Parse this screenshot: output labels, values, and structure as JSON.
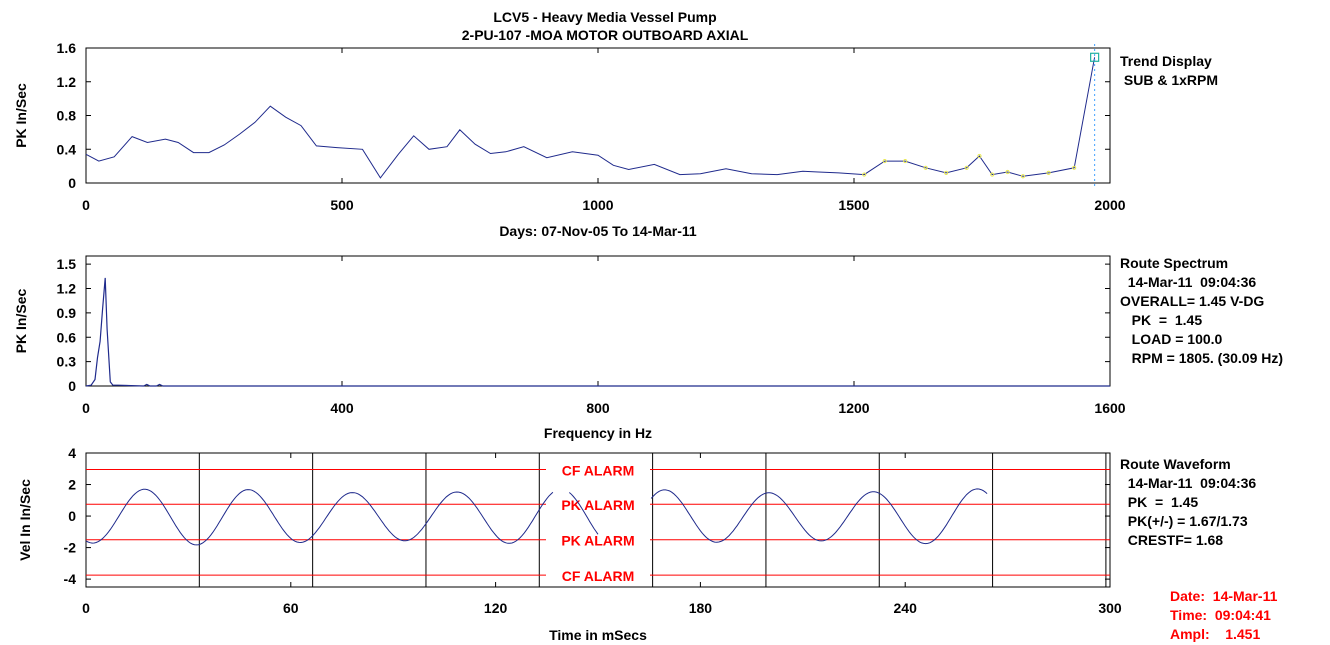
{
  "header": {
    "title": "LCV5 - Heavy Media Vessel Pump",
    "subtitle": "2-PU-107  -MOA  MOTOR OUTBOARD AXIAL"
  },
  "trend_info": {
    "line1": "Trend Display",
    "line2": " SUB & 1xRPM"
  },
  "spectrum_info": {
    "line1": "Route Spectrum",
    "line2": "  14-Mar-11  09:04:36",
    "line3": "OVERALL= 1.45 V-DG",
    "line4": "   PK  =  1.45",
    "line5": "   LOAD = 100.0",
    "line6": "   RPM = 1805. (30.09 Hz)"
  },
  "waveform_info": {
    "line1": "Route Waveform",
    "line2": "  14-Mar-11  09:04:36",
    "line3": "  PK  =  1.45",
    "line4": "  PK(+/-) = 1.67/1.73",
    "line5": "  CRESTF= 1.68"
  },
  "cursor_info": {
    "date": "Date:  14-Mar-11",
    "time": "Time:  09:04:41",
    "ampl": "Ampl:    1.451"
  },
  "colors": {
    "trace": "#1f2a8c",
    "alarm": "#ff0000",
    "cursor": "#40a0ff",
    "marker": "#e8e850"
  },
  "chart_data": [
    {
      "type": "line",
      "title": "LCV5 - Heavy Media Vessel Pump",
      "xlabel": "Days:  07-Nov-05  To  14-Mar-11",
      "ylabel": "PK In/Sec",
      "xlim": [
        0,
        2000
      ],
      "ylim": [
        0,
        1.6
      ],
      "xticks": [
        "0",
        "500",
        "1000",
        "1500",
        "2000"
      ],
      "xtick_values": [
        0,
        500,
        1000,
        1500,
        2000
      ],
      "yticks": [
        "0",
        "0.4",
        "0.8",
        "1.2",
        "1.6"
      ],
      "ytick_values": [
        0,
        0.4,
        0.8,
        1.2,
        1.6
      ],
      "x": [
        0,
        25,
        55,
        90,
        120,
        155,
        180,
        210,
        240,
        270,
        300,
        330,
        360,
        390,
        420,
        450,
        490,
        540,
        575,
        610,
        640,
        670,
        705,
        730,
        760,
        790,
        820,
        855,
        900,
        950,
        1000,
        1030,
        1060,
        1110,
        1160,
        1200,
        1250,
        1300,
        1350,
        1400,
        1430,
        1470,
        1520,
        1560,
        1600,
        1640,
        1680,
        1720,
        1745,
        1770,
        1800,
        1830,
        1880,
        1930,
        1970
      ],
      "y": [
        0.34,
        0.26,
        0.31,
        0.55,
        0.48,
        0.52,
        0.48,
        0.36,
        0.36,
        0.45,
        0.58,
        0.72,
        0.91,
        0.78,
        0.68,
        0.44,
        0.42,
        0.4,
        0.06,
        0.34,
        0.56,
        0.4,
        0.43,
        0.63,
        0.46,
        0.35,
        0.37,
        0.43,
        0.3,
        0.37,
        0.33,
        0.21,
        0.16,
        0.22,
        0.1,
        0.11,
        0.17,
        0.11,
        0.1,
        0.14,
        0.13,
        0.12,
        0.1,
        0.26,
        0.26,
        0.18,
        0.12,
        0.18,
        0.32,
        0.1,
        0.13,
        0.08,
        0.12,
        0.18,
        1.49
      ]
    },
    {
      "type": "line",
      "xlabel": "Frequency in Hz",
      "ylabel": "PK In/Sec",
      "xlim": [
        0,
        1600
      ],
      "ylim": [
        0,
        1.6
      ],
      "xticks": [
        "0",
        "400",
        "800",
        "1200",
        "1600"
      ],
      "xtick_values": [
        0,
        400,
        800,
        1200,
        1600
      ],
      "yticks": [
        "0",
        "0.3",
        "0.6",
        "0.9",
        "1.2",
        "1.5"
      ],
      "ytick_values": [
        0,
        0.3,
        0.6,
        0.9,
        1.2,
        1.5
      ],
      "x": [
        0,
        8,
        14,
        18,
        22,
        26,
        30,
        33,
        38,
        42,
        50,
        90,
        95,
        100,
        110,
        115,
        120,
        1600
      ],
      "y": [
        0,
        0.01,
        0.08,
        0.35,
        0.55,
        0.95,
        1.33,
        0.7,
        0.05,
        0.01,
        0.01,
        0,
        0.02,
        0,
        0,
        0.02,
        0,
        0
      ]
    },
    {
      "type": "line",
      "xlabel": "Time in mSecs",
      "ylabel": "Vel In In/Sec",
      "xlim": [
        0,
        300
      ],
      "ylim": [
        -4.5,
        4
      ],
      "xticks": [
        "0",
        "60",
        "120",
        "180",
        "240",
        "300"
      ],
      "xtick_values": [
        0,
        60,
        120,
        180,
        240,
        300
      ],
      "yticks": [
        "4",
        "2",
        "0",
        "-2",
        "-4"
      ],
      "ytick_values": [
        4,
        2,
        0,
        -2,
        -4
      ],
      "alarms": [
        {
          "label": "CF ALARM",
          "value": 2.95
        },
        {
          "label": "PK ALARM",
          "value": 0.75
        },
        {
          "label": "PK ALARM",
          "value": -1.5
        },
        {
          "label": "CF ALARM",
          "value": -3.75
        }
      ],
      "period_ms": 33.2,
      "amplitude": 1.65
    }
  ]
}
